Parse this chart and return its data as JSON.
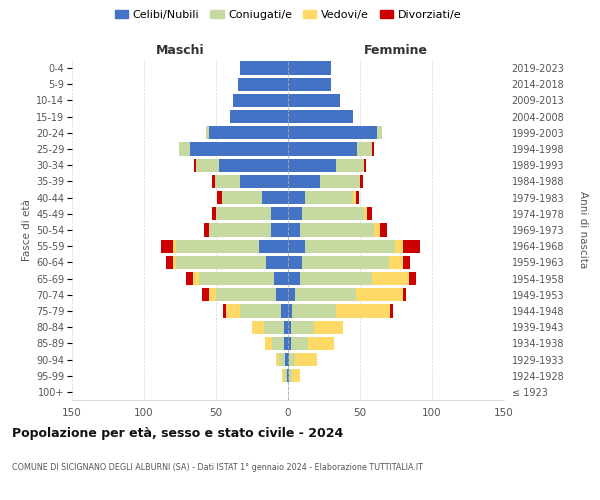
{
  "age_groups": [
    "100+",
    "95-99",
    "90-94",
    "85-89",
    "80-84",
    "75-79",
    "70-74",
    "65-69",
    "60-64",
    "55-59",
    "50-54",
    "45-49",
    "40-44",
    "35-39",
    "30-34",
    "25-29",
    "20-24",
    "15-19",
    "10-14",
    "5-9",
    "0-4"
  ],
  "birth_years": [
    "≤ 1923",
    "1924-1928",
    "1929-1933",
    "1934-1938",
    "1939-1943",
    "1944-1948",
    "1949-1953",
    "1954-1958",
    "1959-1963",
    "1964-1968",
    "1969-1973",
    "1974-1978",
    "1979-1983",
    "1984-1988",
    "1989-1993",
    "1994-1998",
    "1999-2003",
    "2004-2008",
    "2009-2013",
    "2014-2018",
    "2019-2023"
  ],
  "maschi": {
    "celibi": [
      0,
      1,
      2,
      3,
      3,
      5,
      8,
      10,
      15,
      20,
      12,
      12,
      18,
      33,
      48,
      68,
      55,
      40,
      38,
      35,
      33
    ],
    "coniugati": [
      0,
      2,
      4,
      8,
      14,
      28,
      42,
      52,
      63,
      58,
      43,
      38,
      28,
      18,
      16,
      8,
      2,
      0,
      0,
      0,
      0
    ],
    "vedovi": [
      0,
      1,
      2,
      5,
      8,
      10,
      5,
      4,
      2,
      2,
      0,
      0,
      0,
      0,
      0,
      0,
      0,
      0,
      0,
      0,
      0
    ],
    "divorziati": [
      0,
      0,
      0,
      0,
      0,
      2,
      5,
      5,
      5,
      8,
      3,
      3,
      3,
      2,
      1,
      0,
      0,
      0,
      0,
      0,
      0
    ]
  },
  "femmine": {
    "nubili": [
      0,
      1,
      1,
      2,
      2,
      3,
      5,
      8,
      10,
      12,
      8,
      10,
      12,
      22,
      33,
      48,
      62,
      45,
      36,
      30,
      30
    ],
    "coniugate": [
      0,
      2,
      4,
      12,
      16,
      30,
      42,
      50,
      60,
      62,
      52,
      43,
      33,
      28,
      20,
      10,
      3,
      0,
      0,
      0,
      0
    ],
    "vedove": [
      0,
      5,
      15,
      18,
      20,
      38,
      33,
      26,
      10,
      6,
      4,
      2,
      2,
      0,
      0,
      0,
      0,
      0,
      0,
      0,
      0
    ],
    "divorziate": [
      0,
      0,
      0,
      0,
      0,
      2,
      2,
      5,
      5,
      12,
      5,
      3,
      2,
      2,
      1,
      2,
      0,
      0,
      0,
      0,
      0
    ]
  },
  "colors": {
    "celibi": "#4472c4",
    "coniugati": "#c5d9a0",
    "vedovi": "#ffd966",
    "divorziati": "#cc0000"
  },
  "title": "Popolazione per età, sesso e stato civile - 2024",
  "subtitle": "COMUNE DI SICIGNANO DEGLI ALBURNI (SA) - Dati ISTAT 1° gennaio 2024 - Elaborazione TUTTITALIA.IT",
  "xlabel_maschi": "Maschi",
  "xlabel_femmine": "Femmine",
  "ylabel_left": "Fasce di età",
  "ylabel_right": "Anni di nascita",
  "xlim": 150,
  "background_color": "#ffffff",
  "legend_labels": [
    "Celibi/Nubili",
    "Coniugati/e",
    "Vedovi/e",
    "Divorziati/e"
  ]
}
